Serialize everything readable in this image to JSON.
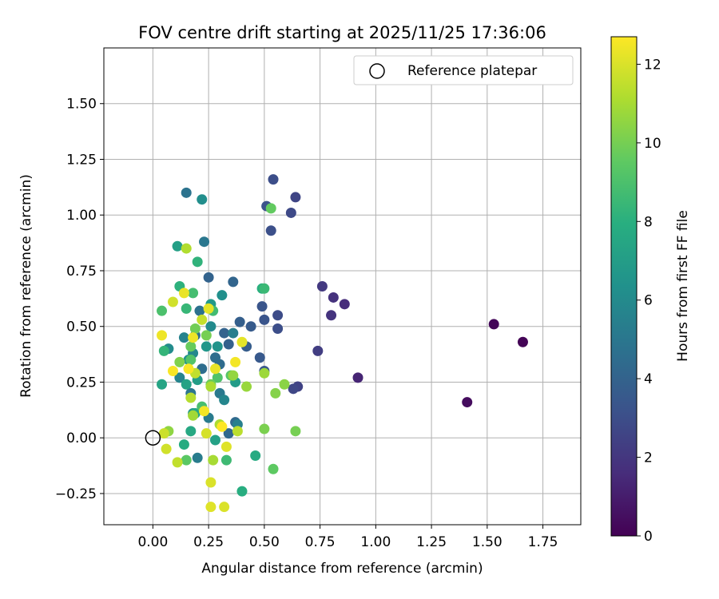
{
  "chart_data": {
    "type": "scatter",
    "title": "FOV centre drift starting at 2025/11/25 17:36:06",
    "xlabel": "Angular distance from reference (arcmin)",
    "ylabel": "Rotation from reference (arcmin)",
    "xlim": [
      -0.22,
      1.92
    ],
    "ylim": [
      -0.39,
      1.75
    ],
    "xticks": [
      0.0,
      0.25,
      0.5,
      0.75,
      1.0,
      1.25,
      1.5,
      1.75
    ],
    "xtick_labels": [
      "0.00",
      "0.25",
      "0.50",
      "0.75",
      "1.00",
      "1.25",
      "1.50",
      "1.75"
    ],
    "yticks": [
      -0.25,
      0.0,
      0.25,
      0.5,
      0.75,
      1.0,
      1.25,
      1.5
    ],
    "ytick_labels": [
      "−0.25",
      "0.00",
      "0.25",
      "0.50",
      "0.75",
      "1.00",
      "1.25",
      "1.50"
    ],
    "grid": true,
    "legend": {
      "position": "top-right",
      "entries": [
        "Reference platepar"
      ]
    },
    "reference_point": {
      "x": 0.0,
      "y": 0.0,
      "label": "Reference platepar"
    },
    "colorbar": {
      "label": "Hours from first FF file",
      "min": 0,
      "max": 12.7,
      "ticks": [
        0,
        2,
        4,
        6,
        8,
        10,
        12
      ],
      "tick_labels": [
        "0",
        "2",
        "4",
        "6",
        "8",
        "10",
        "12"
      ],
      "colormap": "viridis"
    },
    "points": [
      [
        1.66,
        0.43,
        0.1
      ],
      [
        1.53,
        0.51,
        0.2
      ],
      [
        1.41,
        0.16,
        0.4
      ],
      [
        0.92,
        0.27,
        1.3
      ],
      [
        0.86,
        0.6,
        1.6
      ],
      [
        0.81,
        0.63,
        1.8
      ],
      [
        0.8,
        0.55,
        1.9
      ],
      [
        0.76,
        0.68,
        2.1
      ],
      [
        0.74,
        0.39,
        2.3
      ],
      [
        0.65,
        0.23,
        2.5
      ],
      [
        0.64,
        1.08,
        2.6
      ],
      [
        0.63,
        0.22,
        2.7
      ],
      [
        0.62,
        1.01,
        2.8
      ],
      [
        0.56,
        0.55,
        2.9
      ],
      [
        0.56,
        0.49,
        3.0
      ],
      [
        0.54,
        1.16,
        3.0
      ],
      [
        0.53,
        0.93,
        3.1
      ],
      [
        0.51,
        1.04,
        3.2
      ],
      [
        0.5,
        0.53,
        3.3
      ],
      [
        0.49,
        0.59,
        3.3
      ],
      [
        0.5,
        0.3,
        3.4
      ],
      [
        0.48,
        0.36,
        3.5
      ],
      [
        0.44,
        0.5,
        3.6
      ],
      [
        0.42,
        0.41,
        3.7
      ],
      [
        0.39,
        0.52,
        3.8
      ],
      [
        0.34,
        0.42,
        3.9
      ],
      [
        0.32,
        0.47,
        4.0
      ],
      [
        0.25,
        0.72,
        4.0
      ],
      [
        0.36,
        0.7,
        4.1
      ],
      [
        0.34,
        0.02,
        4.2
      ],
      [
        0.37,
        0.07,
        4.3
      ],
      [
        0.3,
        0.33,
        4.4
      ],
      [
        0.28,
        0.36,
        4.5
      ],
      [
        0.22,
        0.31,
        4.5
      ],
      [
        0.19,
        0.46,
        4.6
      ],
      [
        0.21,
        0.57,
        4.7
      ],
      [
        0.15,
        1.1,
        4.8
      ],
      [
        0.17,
        0.2,
        4.9
      ],
      [
        0.23,
        0.88,
        5.0
      ],
      [
        0.3,
        0.2,
        5.1
      ],
      [
        0.25,
        0.09,
        5.2
      ],
      [
        0.2,
        -0.09,
        5.3
      ],
      [
        0.36,
        0.47,
        5.4
      ],
      [
        0.38,
        0.06,
        5.5
      ],
      [
        0.14,
        0.45,
        5.6
      ],
      [
        0.12,
        0.27,
        5.7
      ],
      [
        0.32,
        0.17,
        5.8
      ],
      [
        0.18,
        0.38,
        5.9
      ],
      [
        0.26,
        0.5,
        6.0
      ],
      [
        0.07,
        0.4,
        6.1
      ],
      [
        0.22,
        1.07,
        6.2
      ],
      [
        0.31,
        0.64,
        6.3
      ],
      [
        0.16,
        0.35,
        6.4
      ],
      [
        0.29,
        0.41,
        6.5
      ],
      [
        0.24,
        0.41,
        6.6
      ],
      [
        0.18,
        0.11,
        6.7
      ],
      [
        0.26,
        0.6,
        6.8
      ],
      [
        0.37,
        0.25,
        6.9
      ],
      [
        0.2,
        0.26,
        7.0
      ],
      [
        0.11,
        0.86,
        7.1
      ],
      [
        0.28,
        -0.01,
        7.2
      ],
      [
        0.15,
        0.24,
        7.3
      ],
      [
        0.04,
        0.24,
        7.4
      ],
      [
        0.19,
        0.11,
        7.5
      ],
      [
        0.17,
        0.03,
        7.6
      ],
      [
        0.46,
        -0.08,
        7.7
      ],
      [
        0.14,
        -0.03,
        7.8
      ],
      [
        0.4,
        -0.24,
        7.9
      ],
      [
        0.49,
        0.67,
        8.0
      ],
      [
        0.12,
        0.68,
        8.1
      ],
      [
        0.2,
        0.79,
        8.2
      ],
      [
        0.05,
        0.39,
        8.3
      ],
      [
        0.15,
        0.58,
        8.4
      ],
      [
        0.5,
        0.67,
        8.5
      ],
      [
        0.33,
        -0.1,
        8.6
      ],
      [
        0.27,
        0.57,
        8.7
      ],
      [
        0.18,
        0.65,
        8.8
      ],
      [
        0.22,
        0.14,
        8.9
      ],
      [
        0.04,
        0.57,
        9.0
      ],
      [
        0.29,
        0.27,
        9.1
      ],
      [
        0.17,
        0.35,
        9.2
      ],
      [
        0.35,
        0.28,
        9.3
      ],
      [
        0.15,
        -0.1,
        9.4
      ],
      [
        0.54,
        -0.14,
        9.5
      ],
      [
        0.53,
        1.03,
        9.6
      ],
      [
        0.17,
        0.41,
        9.7
      ],
      [
        0.26,
        0.24,
        9.8
      ],
      [
        0.19,
        0.49,
        9.9
      ],
      [
        0.24,
        0.46,
        10.0
      ],
      [
        0.64,
        0.03,
        10.0
      ],
      [
        0.5,
        0.04,
        10.1
      ],
      [
        0.12,
        0.34,
        10.2
      ],
      [
        0.55,
        0.2,
        10.3
      ],
      [
        0.59,
        0.24,
        10.4
      ],
      [
        0.07,
        0.03,
        10.5
      ],
      [
        0.36,
        0.28,
        10.6
      ],
      [
        0.42,
        0.23,
        10.7
      ],
      [
        0.5,
        0.29,
        10.8
      ],
      [
        0.18,
        0.1,
        10.9
      ],
      [
        0.27,
        -0.1,
        11.0
      ],
      [
        0.3,
        0.06,
        11.1
      ],
      [
        0.26,
        0.23,
        11.1
      ],
      [
        0.15,
        0.85,
        11.2
      ],
      [
        0.17,
        0.18,
        11.3
      ],
      [
        0.38,
        0.03,
        11.4
      ],
      [
        0.11,
        -0.11,
        11.5
      ],
      [
        0.19,
        0.29,
        11.5
      ],
      [
        0.22,
        0.53,
        11.6
      ],
      [
        0.05,
        0.02,
        11.7
      ],
      [
        0.09,
        0.61,
        11.8
      ],
      [
        0.06,
        -0.05,
        11.8
      ],
      [
        0.24,
        0.02,
        11.9
      ],
      [
        0.26,
        -0.2,
        12.0
      ],
      [
        0.32,
        -0.31,
        12.0
      ],
      [
        0.26,
        -0.31,
        12.1
      ],
      [
        0.33,
        -0.04,
        12.1
      ],
      [
        0.4,
        0.43,
        12.2
      ],
      [
        0.25,
        0.58,
        12.2
      ],
      [
        0.14,
        0.65,
        12.3
      ],
      [
        0.28,
        0.31,
        12.3
      ],
      [
        0.04,
        0.46,
        12.4
      ],
      [
        0.18,
        0.45,
        12.4
      ],
      [
        0.37,
        0.34,
        12.5
      ],
      [
        0.23,
        0.12,
        12.5
      ],
      [
        0.09,
        0.3,
        12.6
      ],
      [
        0.16,
        0.31,
        12.6
      ],
      [
        0.31,
        0.05,
        12.7
      ]
    ]
  }
}
